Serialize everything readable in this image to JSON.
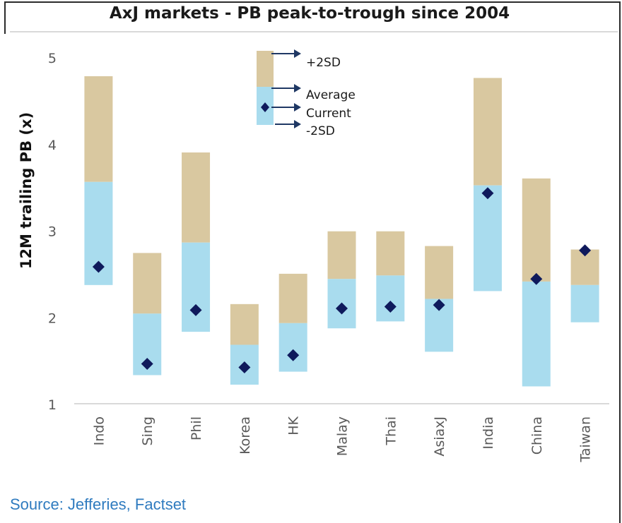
{
  "title": "AxJ markets - PB peak-to-trough since 2004",
  "source": "Source: Jefferies, Factset",
  "colors": {
    "upper_band": "#d9c8a0",
    "lower_band": "#a9dcee",
    "current_marker": "#0f1a5c",
    "legend_arrow": "#1f3864"
  },
  "chart_data": {
    "type": "bar",
    "title": "AxJ markets - PB peak-to-trough since 2004",
    "ylabel": "12M trailing PB (x)",
    "xlabel": "",
    "ylim": [
      1,
      5
    ],
    "yticks": [
      1,
      2,
      3,
      4,
      5
    ],
    "grid": false,
    "legend_position": "top-center",
    "legend": [
      "+2SD",
      "Average",
      "Current",
      "-2SD"
    ],
    "categories": [
      "Indo",
      "Sing",
      "Phil",
      "Korea",
      "HK",
      "Malay",
      "Thai",
      "AsiaxJ",
      "India",
      "China",
      "Taiwan"
    ],
    "series": [
      {
        "name": "+2SD",
        "values": [
          4.78,
          2.74,
          3.9,
          2.15,
          2.5,
          2.99,
          2.99,
          2.82,
          4.76,
          3.6,
          2.78
        ]
      },
      {
        "name": "Average",
        "values": [
          3.56,
          2.04,
          2.86,
          1.68,
          1.93,
          2.44,
          2.48,
          2.21,
          3.52,
          2.41,
          2.37
        ]
      },
      {
        "name": "Current",
        "values": [
          2.58,
          1.46,
          2.08,
          1.42,
          1.56,
          2.1,
          2.12,
          2.14,
          3.43,
          2.44,
          2.77
        ]
      },
      {
        "name": "-2SD",
        "values": [
          2.37,
          1.33,
          1.83,
          1.22,
          1.37,
          1.87,
          1.95,
          1.6,
          2.3,
          1.2,
          1.94
        ]
      }
    ]
  }
}
